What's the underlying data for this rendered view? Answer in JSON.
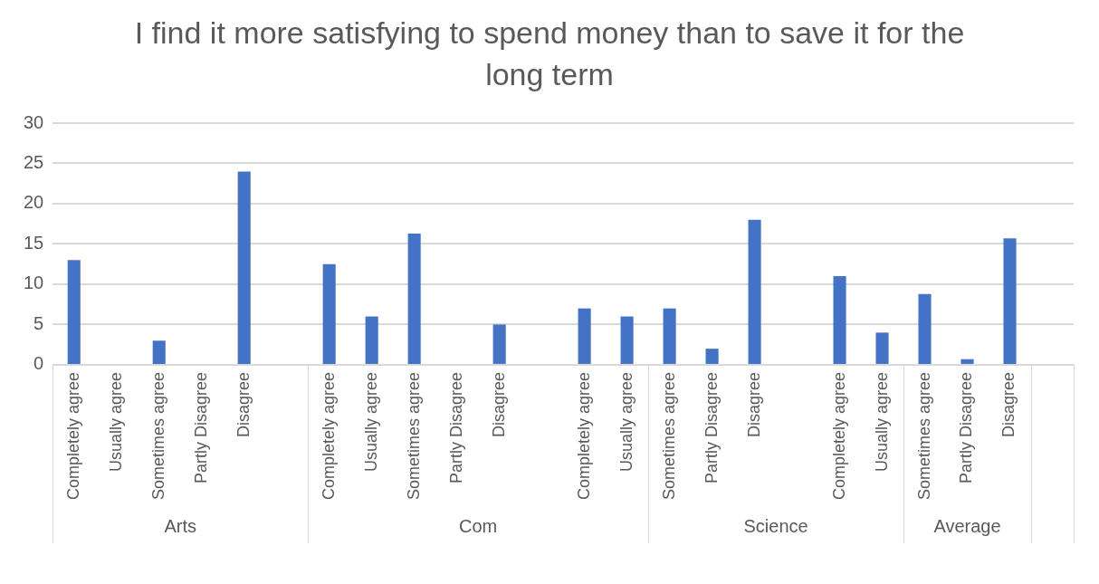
{
  "chart_data": {
    "type": "bar",
    "title": "I find it more satisfying to spend money than to save it for the long term",
    "categories": [
      "Completely agree",
      "Usually agree",
      "Sometimes agree",
      "Partly Disagree",
      "Disagree",
      null,
      "Completely agree",
      "Usually agree",
      "Sometimes agree",
      "Partly Disagree",
      "Disagree",
      null,
      "Completely agree",
      "Usually agree",
      "Sometimes agree",
      "Partly Disagree",
      "Disagree",
      null,
      "Completely agree",
      "Usually agree",
      "Sometimes agree",
      "Partly Disagree",
      "Disagree",
      null
    ],
    "values": [
      13,
      null,
      3,
      null,
      24,
      null,
      12.5,
      6,
      16.3,
      null,
      5,
      null,
      7,
      6,
      7,
      2,
      18,
      null,
      11,
      4,
      8.8,
      0.7,
      15.7,
      null
    ],
    "color": "#4472c4",
    "ylim": [
      0,
      30
    ],
    "yticks": [
      0,
      5,
      10,
      15,
      20,
      25,
      30
    ],
    "grid": "y",
    "legend": false,
    "annotations": [
      "Arts",
      "Com",
      "Science",
      "Average"
    ]
  }
}
